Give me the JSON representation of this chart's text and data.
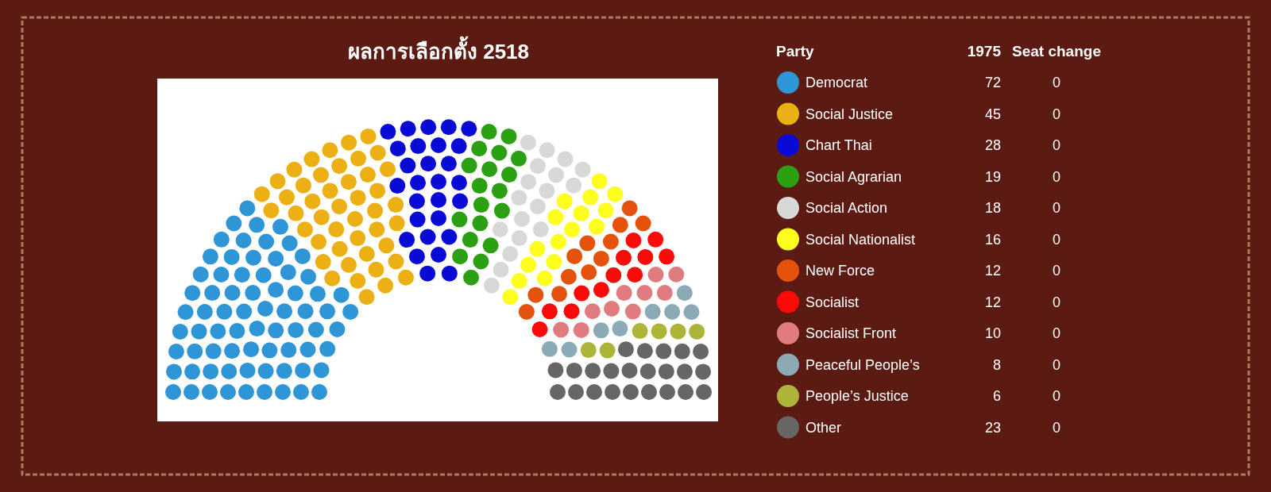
{
  "chart_data": {
    "type": "other",
    "title": "ผลการเลือกตั้ง 2518",
    "legend_title": "Party",
    "data_labels": true,
    "categories": [
      "Democrat",
      "Social Justice",
      "Chart Thai",
      "Social Agrarian",
      "Social Action",
      "Social Nationalist",
      "New Force",
      "Socialist",
      "Socialist Front",
      "Peaceful People’s",
      "People’s Justice",
      "Other"
    ],
    "colors": [
      "#2e96d6",
      "#ecaf14",
      "#0a0ad6",
      "#2aa012",
      "#d8d8d8",
      "#fdfd1e",
      "#e4520c",
      "#fb0a0a",
      "#e07c80",
      "#8aaab6",
      "#adb43a",
      "#666666"
    ],
    "series": [
      {
        "name": "1975",
        "values": [
          72,
          45,
          28,
          19,
          18,
          16,
          12,
          12,
          10,
          8,
          6,
          23
        ]
      },
      {
        "name": "Seat change",
        "values": [
          0,
          0,
          0,
          0,
          0,
          0,
          0,
          0,
          0,
          0,
          0,
          0
        ]
      }
    ]
  }
}
